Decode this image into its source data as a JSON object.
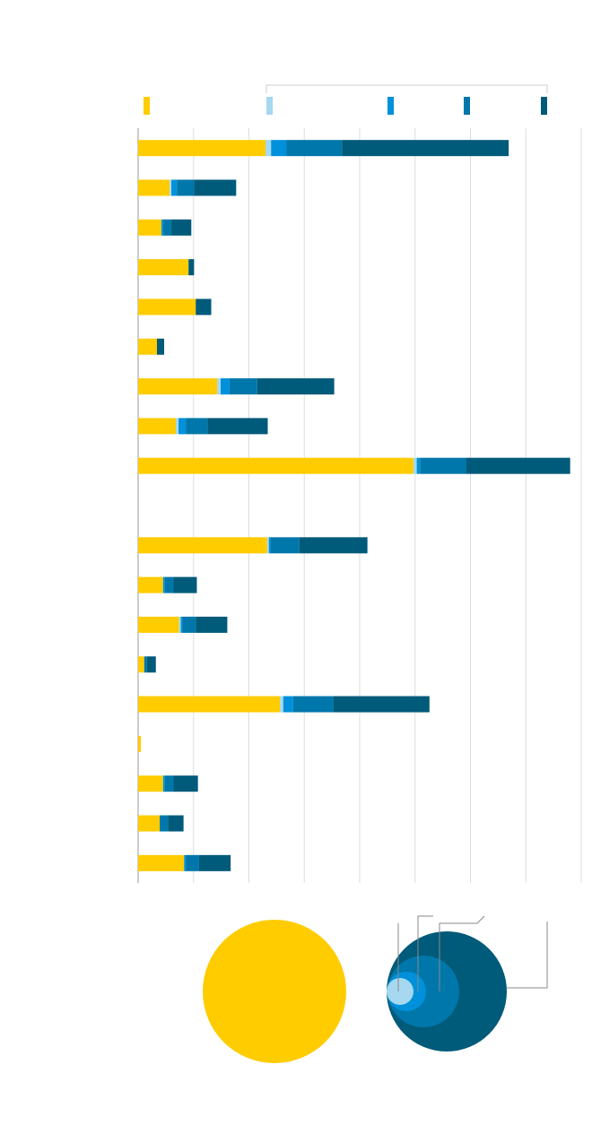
{
  "chart_data": {
    "type": "stacked-bar-horizontal",
    "categories": [
      null,
      null,
      null,
      null,
      null,
      null,
      null,
      null,
      null,
      null,
      null,
      null,
      null,
      null,
      null,
      null,
      null,
      null,
      null
    ],
    "series": [
      {
        "color": "#ffcc00",
        "values": [
          23.0,
          5.7,
          4.2,
          9.1,
          10.4,
          3.4,
          14.3,
          6.8,
          49.7,
          null,
          23.3,
          4.5,
          7.4,
          1.1,
          25.6,
          0.5,
          4.5,
          3.9,
          8.3
        ]
      },
      {
        "color": "#a6d8f0",
        "values": [
          1.0,
          0.3,
          0,
          0,
          0,
          0,
          0.6,
          0.5,
          0.6,
          null,
          0.3,
          0,
          0.3,
          0,
          0.6,
          0,
          0,
          0,
          0
        ]
      },
      {
        "color": "#0091da",
        "values": [
          2.8,
          1.0,
          0.3,
          0,
          0,
          0,
          1.6,
          1.3,
          0.6,
          null,
          0.3,
          0.3,
          0.3,
          0,
          1.8,
          0,
          0.3,
          0,
          0.3
        ]
      },
      {
        "color": "#0077aa",
        "values": [
          10.0,
          3.1,
          1.5,
          0,
          0,
          0,
          5.0,
          3.9,
          8.3,
          null,
          5.2,
          1.6,
          2.4,
          0.5,
          7.3,
          0,
          1.6,
          1.5,
          2.4
        ]
      },
      {
        "color": "#005a7a",
        "values": [
          30.1,
          7.6,
          3.6,
          1.0,
          2.8,
          1.3,
          13.9,
          10.9,
          18.8,
          null,
          12.3,
          4.2,
          5.7,
          1.6,
          17.3,
          0,
          4.4,
          2.8,
          5.7
        ]
      }
    ],
    "xlim": [
      0,
      80
    ],
    "xticks": [
      0,
      10,
      20,
      30,
      40,
      50,
      60,
      70,
      80
    ],
    "grid": true
  }
}
